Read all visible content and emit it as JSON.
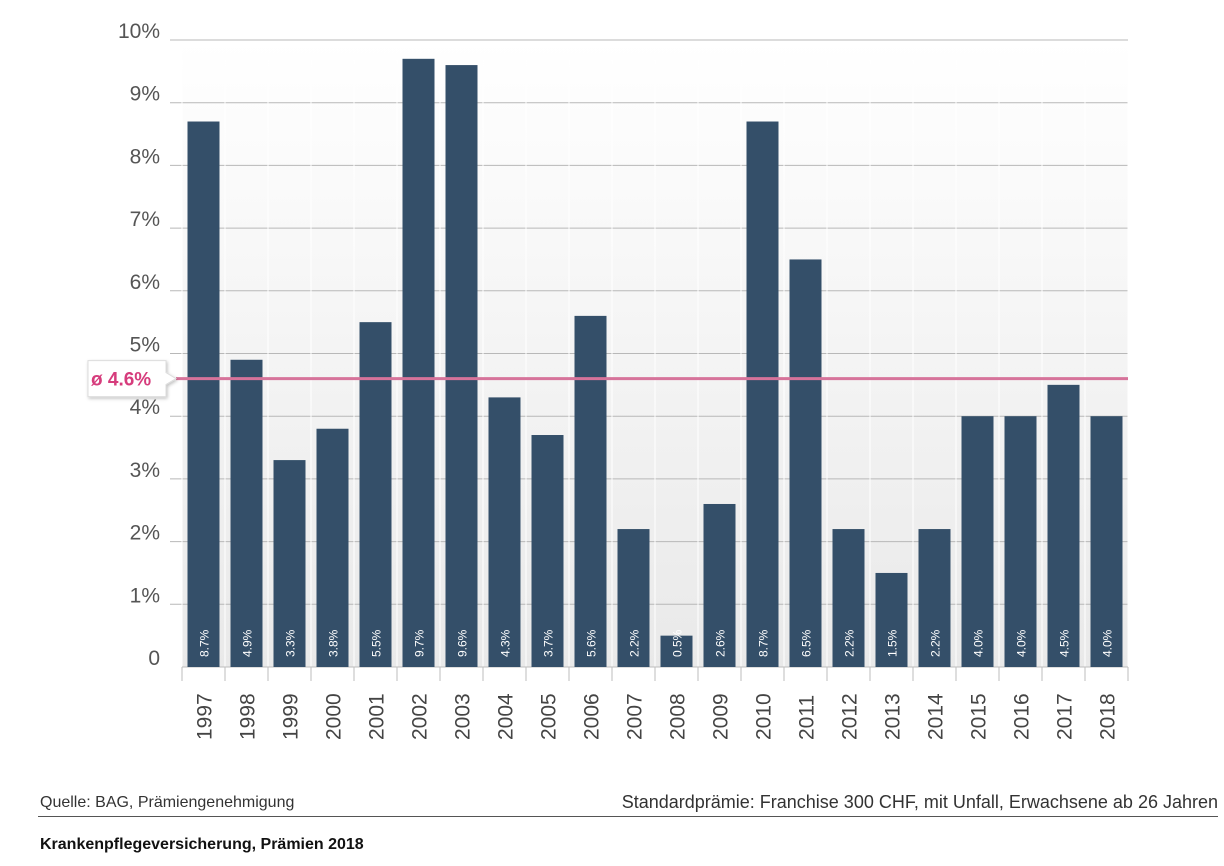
{
  "chart_data": {
    "type": "bar",
    "categories": [
      "1997",
      "1998",
      "1999",
      "2000",
      "2001",
      "2002",
      "2003",
      "2004",
      "2005",
      "2006",
      "2007",
      "2008",
      "2009",
      "2010",
      "2011",
      "2012",
      "2013",
      "2014",
      "2015",
      "2016",
      "2017",
      "2018"
    ],
    "values": [
      8.7,
      4.9,
      3.3,
      3.8,
      5.5,
      9.7,
      9.6,
      4.3,
      3.7,
      5.6,
      2.2,
      0.5,
      2.6,
      8.7,
      6.5,
      2.2,
      1.5,
      2.2,
      4.0,
      4.0,
      4.5,
      4.0
    ],
    "data_labels": [
      "8.7%",
      "4.9%",
      "3.3%",
      "3.8%",
      "5.5%",
      "9.7%",
      "9.6%",
      "4.3%",
      "3.7%",
      "5.6%",
      "2.2%",
      "0.5%",
      "2.6%",
      "8.7%",
      "6.5%",
      "2.2%",
      "1.5%",
      "2.2%",
      "4.0%",
      "4.0%",
      "4.5%",
      "4.0%"
    ],
    "y_ticks": [
      0,
      1,
      2,
      3,
      4,
      5,
      6,
      7,
      8,
      9,
      10
    ],
    "y_tick_labels": [
      "0",
      "1%",
      "2%",
      "3%",
      "4%",
      "5%",
      "6%",
      "7%",
      "8%",
      "9%",
      "10%"
    ],
    "ylim": [
      0,
      10
    ],
    "grid": true,
    "average": {
      "value": 4.6,
      "label": "ø 4.6%"
    },
    "colors": {
      "bar": "#344f69",
      "average_line": "#d6739a",
      "average_text": "#d63c7c",
      "grid": "#b8b8b8",
      "plot_bg": "#f2f2f2",
      "data_label": "#ffffff"
    }
  },
  "footer": {
    "source": "Quelle: BAG, Prämiengenehmigung",
    "note": "Standardprämie: Franchise 300 CHF, mit Unfall, Erwachsene ab 26 Jahren",
    "title": "Krankenpflegeversicherung, Prämien 2018"
  }
}
